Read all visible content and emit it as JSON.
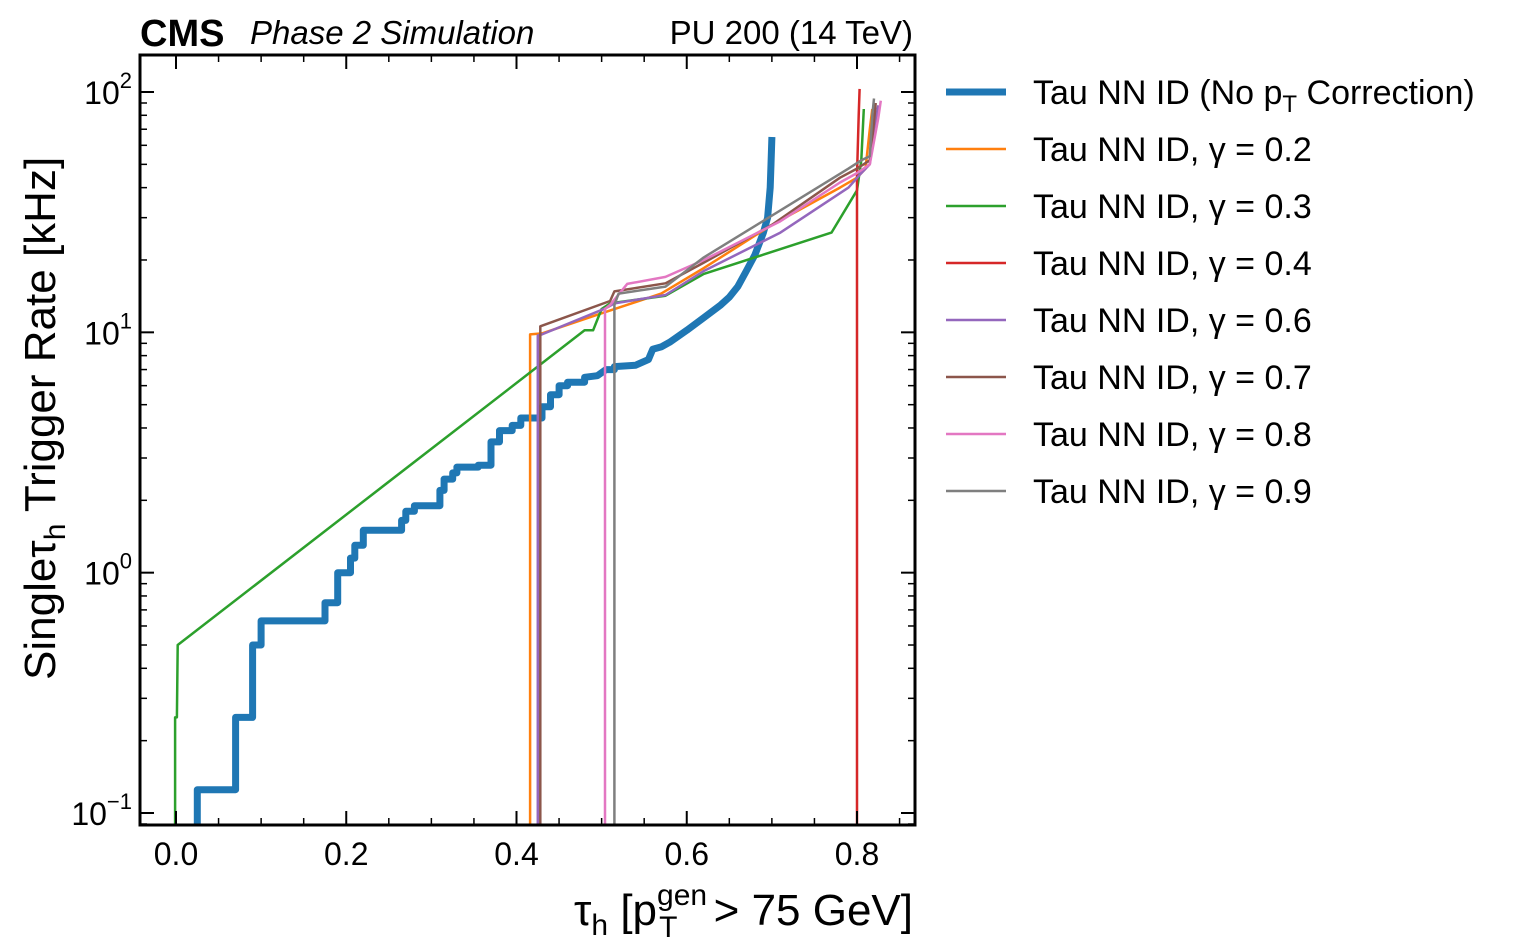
{
  "header": {
    "experiment": "CMS",
    "status": "Phase 2 Simulation",
    "lumi": "PU 200 (14 TeV)"
  },
  "chart_data": {
    "type": "line",
    "xlabel": "τh [pTgen > 75 GeV]",
    "ylabel": "Singleτh Trigger Rate [kHz]",
    "xlim": [
      -0.04,
      0.87
    ],
    "ylim": [
      0.088,
      140
    ],
    "yscale": "log",
    "x_ticks": [
      0.0,
      0.2,
      0.4,
      0.6,
      0.8
    ],
    "x_tick_labels": [
      "0.0",
      "0.2",
      "0.4",
      "0.6",
      "0.8"
    ],
    "y_ticks": [
      0.1,
      1,
      10,
      100
    ],
    "y_tick_labels": [
      {
        "base": "10",
        "exp": "−1"
      },
      {
        "base": "10",
        "exp": "0"
      },
      {
        "base": "10",
        "exp": "1"
      },
      {
        "base": "10",
        "exp": "2"
      }
    ],
    "legend_position": "outside-right",
    "series": [
      {
        "name": "Tau NN ID (No pT Correction)",
        "legend_main": "Tau NN ID (No p",
        "legend_sub": "T",
        "legend_tail": " Correction)",
        "color": "#1f77b4",
        "width": 7,
        "points": [
          [
            0.025,
            0.08
          ],
          [
            0.025,
            0.125
          ],
          [
            0.07,
            0.125
          ],
          [
            0.07,
            0.25
          ],
          [
            0.09,
            0.25
          ],
          [
            0.09,
            0.5
          ],
          [
            0.1,
            0.5
          ],
          [
            0.1,
            0.63
          ],
          [
            0.175,
            0.63
          ],
          [
            0.175,
            0.75
          ],
          [
            0.19,
            0.75
          ],
          [
            0.19,
            1.0
          ],
          [
            0.205,
            1.0
          ],
          [
            0.205,
            1.15
          ],
          [
            0.21,
            1.15
          ],
          [
            0.21,
            1.3
          ],
          [
            0.22,
            1.3
          ],
          [
            0.22,
            1.5
          ],
          [
            0.265,
            1.5
          ],
          [
            0.265,
            1.65
          ],
          [
            0.27,
            1.65
          ],
          [
            0.27,
            1.8
          ],
          [
            0.28,
            1.8
          ],
          [
            0.28,
            1.9
          ],
          [
            0.31,
            1.9
          ],
          [
            0.31,
            2.2
          ],
          [
            0.315,
            2.2
          ],
          [
            0.315,
            2.45
          ],
          [
            0.325,
            2.45
          ],
          [
            0.325,
            2.6
          ],
          [
            0.33,
            2.6
          ],
          [
            0.33,
            2.75
          ],
          [
            0.355,
            2.75
          ],
          [
            0.355,
            2.8
          ],
          [
            0.37,
            2.8
          ],
          [
            0.37,
            3.5
          ],
          [
            0.38,
            3.5
          ],
          [
            0.38,
            3.9
          ],
          [
            0.395,
            3.9
          ],
          [
            0.395,
            4.1
          ],
          [
            0.405,
            4.1
          ],
          [
            0.405,
            4.4
          ],
          [
            0.43,
            4.4
          ],
          [
            0.43,
            4.9
          ],
          [
            0.44,
            4.9
          ],
          [
            0.44,
            5.5
          ],
          [
            0.45,
            5.5
          ],
          [
            0.45,
            6.0
          ],
          [
            0.46,
            6.0
          ],
          [
            0.46,
            6.2
          ],
          [
            0.48,
            6.2
          ],
          [
            0.48,
            6.5
          ],
          [
            0.495,
            6.6
          ],
          [
            0.505,
            7.0
          ],
          [
            0.515,
            7.0
          ],
          [
            0.515,
            7.2
          ],
          [
            0.54,
            7.3
          ],
          [
            0.555,
            7.7
          ],
          [
            0.56,
            8.5
          ],
          [
            0.57,
            8.7
          ],
          [
            0.58,
            9.1
          ],
          [
            0.6,
            10.2
          ],
          [
            0.62,
            11.5
          ],
          [
            0.64,
            13.0
          ],
          [
            0.65,
            14.0
          ],
          [
            0.66,
            15.5
          ],
          [
            0.67,
            18.0
          ],
          [
            0.68,
            21.0
          ],
          [
            0.69,
            26.0
          ],
          [
            0.695,
            30.0
          ],
          [
            0.698,
            40.0
          ],
          [
            0.699,
            50.0
          ],
          [
            0.7,
            65.0
          ]
        ]
      },
      {
        "name": "Tau NN ID, γ = 0.2",
        "legend_main": "Tau NN ID, γ = 0.2",
        "color": "#ff7f0e",
        "width": 2.5,
        "points": [
          [
            0.416,
            0.08
          ],
          [
            0.416,
            9.8
          ],
          [
            0.43,
            9.9
          ],
          [
            0.5,
            12.0
          ],
          [
            0.57,
            14.5
          ],
          [
            0.62,
            18.5
          ],
          [
            0.7,
            28.0
          ],
          [
            0.78,
            40.0
          ],
          [
            0.8,
            44.0
          ],
          [
            0.81,
            48.0
          ],
          [
            0.815,
            70.0
          ],
          [
            0.818,
            85.0
          ]
        ]
      },
      {
        "name": "Tau NN ID, γ = 0.3",
        "legend_main": "Tau NN ID, γ = 0.3",
        "color": "#2ca02c",
        "width": 2.5,
        "points": [
          [
            -0.001,
            0.08
          ],
          [
            -0.001,
            0.25
          ],
          [
            0.001,
            0.25
          ],
          [
            0.002,
            0.5
          ],
          [
            0.48,
            10.2
          ],
          [
            0.49,
            10.2
          ],
          [
            0.5,
            12.5
          ],
          [
            0.51,
            13.2
          ],
          [
            0.575,
            14.2
          ],
          [
            0.62,
            17.5
          ],
          [
            0.77,
            26.0
          ],
          [
            0.8,
            39.0
          ],
          [
            0.805,
            52.0
          ],
          [
            0.808,
            85.0
          ]
        ]
      },
      {
        "name": "Tau NN ID, γ = 0.4",
        "legend_main": "Tau NN ID, γ = 0.4",
        "color": "#d62728",
        "width": 2.5,
        "points": [
          [
            0.8,
            0.08
          ],
          [
            0.8,
            45.0
          ],
          [
            0.802,
            80.0
          ],
          [
            0.803,
            103.0
          ]
        ]
      },
      {
        "name": "Tau NN ID, γ = 0.6",
        "legend_main": "Tau NN ID, γ = 0.6",
        "color": "#9467bd",
        "width": 2.5,
        "points": [
          [
            0.425,
            0.08
          ],
          [
            0.425,
            9.7
          ],
          [
            0.43,
            9.8
          ],
          [
            0.505,
            12.6
          ],
          [
            0.515,
            13.2
          ],
          [
            0.575,
            14.3
          ],
          [
            0.62,
            18.0
          ],
          [
            0.71,
            26.0
          ],
          [
            0.79,
            40.0
          ],
          [
            0.805,
            46.0
          ],
          [
            0.815,
            50.0
          ],
          [
            0.82,
            70.0
          ],
          [
            0.825,
            88.0
          ]
        ]
      },
      {
        "name": "Tau NN ID, γ = 0.7",
        "legend_main": "Tau NN ID, γ = 0.7",
        "color": "#8c564b",
        "width": 2.5,
        "points": [
          [
            0.428,
            0.08
          ],
          [
            0.428,
            10.6
          ],
          [
            0.51,
            13.5
          ],
          [
            0.515,
            14.8
          ],
          [
            0.575,
            16.0
          ],
          [
            0.62,
            19.5
          ],
          [
            0.7,
            28.0
          ],
          [
            0.78,
            44.0
          ],
          [
            0.8,
            48.0
          ],
          [
            0.815,
            52.0
          ],
          [
            0.82,
            75.0
          ],
          [
            0.822,
            90.0
          ]
        ]
      },
      {
        "name": "Tau NN ID, γ = 0.8",
        "legend_main": "Tau NN ID, γ = 0.8",
        "color": "#e377c2",
        "width": 2.5,
        "points": [
          [
            0.504,
            0.08
          ],
          [
            0.504,
            12.5
          ],
          [
            0.51,
            13.0
          ],
          [
            0.53,
            15.9
          ],
          [
            0.575,
            17.0
          ],
          [
            0.62,
            20.0
          ],
          [
            0.71,
            29.0
          ],
          [
            0.78,
            42.0
          ],
          [
            0.8,
            46.0
          ],
          [
            0.815,
            50.0
          ],
          [
            0.825,
            78.0
          ],
          [
            0.828,
            92.0
          ]
        ]
      },
      {
        "name": "Tau NN ID, γ = 0.9",
        "legend_main": "Tau NN ID, γ = 0.9",
        "color": "#7f7f7f",
        "width": 2.5,
        "points": [
          [
            0.515,
            0.08
          ],
          [
            0.515,
            13.0
          ],
          [
            0.52,
            14.5
          ],
          [
            0.575,
            15.5
          ],
          [
            0.62,
            20.5
          ],
          [
            0.79,
            48.0
          ],
          [
            0.805,
            52.0
          ],
          [
            0.815,
            54.0
          ],
          [
            0.818,
            80.0
          ],
          [
            0.82,
            94.0
          ]
        ]
      }
    ]
  }
}
